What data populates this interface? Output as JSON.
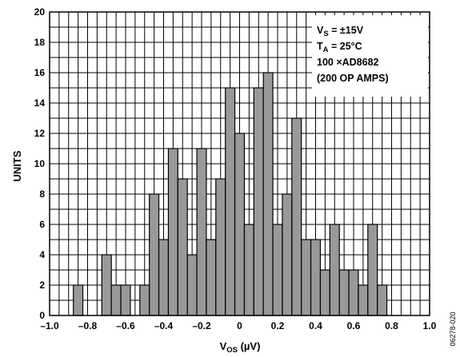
{
  "chart_data": {
    "type": "bar",
    "x": [
      -0.85,
      -0.7,
      -0.65,
      -0.6,
      -0.5,
      -0.45,
      -0.4,
      -0.35,
      -0.3,
      -0.25,
      -0.2,
      -0.15,
      -0.1,
      -0.05,
      0.0,
      0.05,
      0.1,
      0.15,
      0.2,
      0.25,
      0.3,
      0.35,
      0.4,
      0.45,
      0.5,
      0.55,
      0.6,
      0.65,
      0.7,
      0.75
    ],
    "values": [
      2,
      4,
      2,
      2,
      2,
      8,
      5,
      11,
      9,
      4,
      11,
      5,
      9,
      15,
      12,
      6,
      15,
      16,
      6,
      8,
      13,
      5,
      5,
      3,
      6,
      3,
      3,
      2,
      6,
      2
    ],
    "bin_width": 0.05,
    "xlabel": "V_OS (µV)",
    "xlabel_main": "V",
    "xlabel_sub": "OS",
    "xlabel_unit": " (µV)",
    "ylabel": "UNITS",
    "xlim": [
      -1.0,
      1.0
    ],
    "ylim": [
      0,
      20
    ],
    "xticks": [
      "–1.0",
      "–0.8",
      "–0.6",
      "–0.4",
      "–0.2",
      "0",
      "0.2",
      "0.4",
      "0.6",
      "0.8",
      "1.0"
    ],
    "yticks": [
      "0",
      "2",
      "4",
      "6",
      "8",
      "10",
      "12",
      "14",
      "16",
      "18",
      "20"
    ],
    "grid": true,
    "bar_color": "#999999",
    "legend_position": "top-right",
    "legend": {
      "line1_main": "V",
      "line1_sub": "S",
      "line1_rest": " = ±15V",
      "line2_main": "T",
      "line2_sub": "A",
      "line2_rest": " = 25°C",
      "line3": "100 ×AD8682",
      "line4": "(200 OP AMPS)"
    },
    "figure_code": "06278-020"
  }
}
